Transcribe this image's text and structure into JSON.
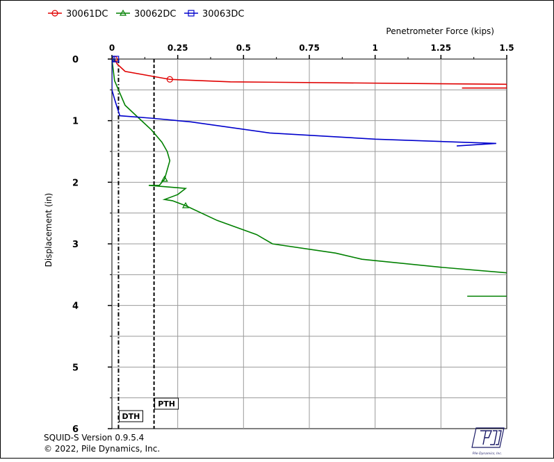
{
  "chart_data": {
    "type": "line",
    "title": "",
    "xlabel": "Penetrometer Force (kips)",
    "ylabel": "Displacement (in)",
    "xlim": [
      0,
      1.5
    ],
    "ylim": [
      0,
      6
    ],
    "x_axis_position": "top",
    "y_inverted": true,
    "grid": true,
    "legend_position": "top-left",
    "x_ticks": [
      0,
      0.25,
      0.5,
      0.75,
      1,
      1.25,
      1.5
    ],
    "x_tick_labels": [
      "0",
      "0.25",
      "0.5",
      "0.75",
      "1",
      "1.25",
      "1.5"
    ],
    "y_ticks": [
      0,
      1,
      2,
      3,
      4,
      5,
      6
    ],
    "y_tick_labels": [
      "0",
      "1",
      "2",
      "3",
      "4",
      "5",
      "6"
    ],
    "series": [
      {
        "name": "30061DC",
        "color": "#e00000",
        "marker": "circle",
        "points": [
          [
            0.01,
            0.0
          ],
          [
            0.02,
            0.08
          ],
          [
            0.05,
            0.2
          ],
          [
            0.22,
            0.33
          ],
          [
            0.45,
            0.37
          ],
          [
            1.5,
            0.41
          ],
          [
            1.5,
            0.47
          ],
          [
            1.33,
            0.47
          ]
        ],
        "marker_points": [
          [
            0.01,
            0.0
          ],
          [
            0.22,
            0.33
          ]
        ]
      },
      {
        "name": "30062DC",
        "color": "#008000",
        "marker": "triangle",
        "points": [
          [
            0.0,
            0.0
          ],
          [
            0.01,
            0.35
          ],
          [
            0.03,
            0.55
          ],
          [
            0.05,
            0.75
          ],
          [
            0.1,
            0.95
          ],
          [
            0.15,
            1.15
          ],
          [
            0.19,
            1.35
          ],
          [
            0.21,
            1.5
          ],
          [
            0.22,
            1.65
          ],
          [
            0.2,
            1.95
          ],
          [
            0.18,
            2.05
          ],
          [
            0.14,
            2.05
          ],
          [
            0.28,
            2.1
          ],
          [
            0.25,
            2.2
          ],
          [
            0.2,
            2.28
          ],
          [
            0.23,
            2.3
          ],
          [
            0.28,
            2.38
          ],
          [
            0.4,
            2.62
          ],
          [
            0.55,
            2.85
          ],
          [
            0.61,
            3.0
          ],
          [
            0.85,
            3.15
          ],
          [
            0.95,
            3.25
          ],
          [
            1.25,
            3.38
          ],
          [
            1.5,
            3.47
          ]
        ],
        "extra_segments": [
          [
            [
              1.35,
              3.85
            ],
            [
              1.5,
              3.85
            ]
          ]
        ],
        "marker_points": [
          [
            0.0,
            0.0
          ],
          [
            0.2,
            1.95
          ],
          [
            0.28,
            2.38
          ]
        ]
      },
      {
        "name": "30063DC",
        "color": "#0000cc",
        "marker": "square",
        "points": [
          [
            0.0,
            0.0
          ],
          [
            0.0,
            0.5
          ],
          [
            0.01,
            0.65
          ],
          [
            0.03,
            0.92
          ],
          [
            0.15,
            0.96
          ],
          [
            0.3,
            1.02
          ],
          [
            0.6,
            1.2
          ],
          [
            1.0,
            1.3
          ],
          [
            1.46,
            1.37
          ],
          [
            1.31,
            1.41
          ]
        ],
        "marker_points": [
          [
            0.0,
            0.0
          ],
          [
            0.015,
            0.0
          ]
        ]
      }
    ],
    "reference_lines": [
      {
        "label": "DTH",
        "x": 0.025,
        "style": "dashdot"
      },
      {
        "label": "PTH",
        "x": 0.16,
        "style": "dashed"
      }
    ]
  },
  "footer": {
    "version": "SQUID-S Version 0.9.5.4",
    "copyright": "© 2022, Pile Dynamics, Inc.",
    "logo_text": "Pile Dynamics, Inc."
  }
}
